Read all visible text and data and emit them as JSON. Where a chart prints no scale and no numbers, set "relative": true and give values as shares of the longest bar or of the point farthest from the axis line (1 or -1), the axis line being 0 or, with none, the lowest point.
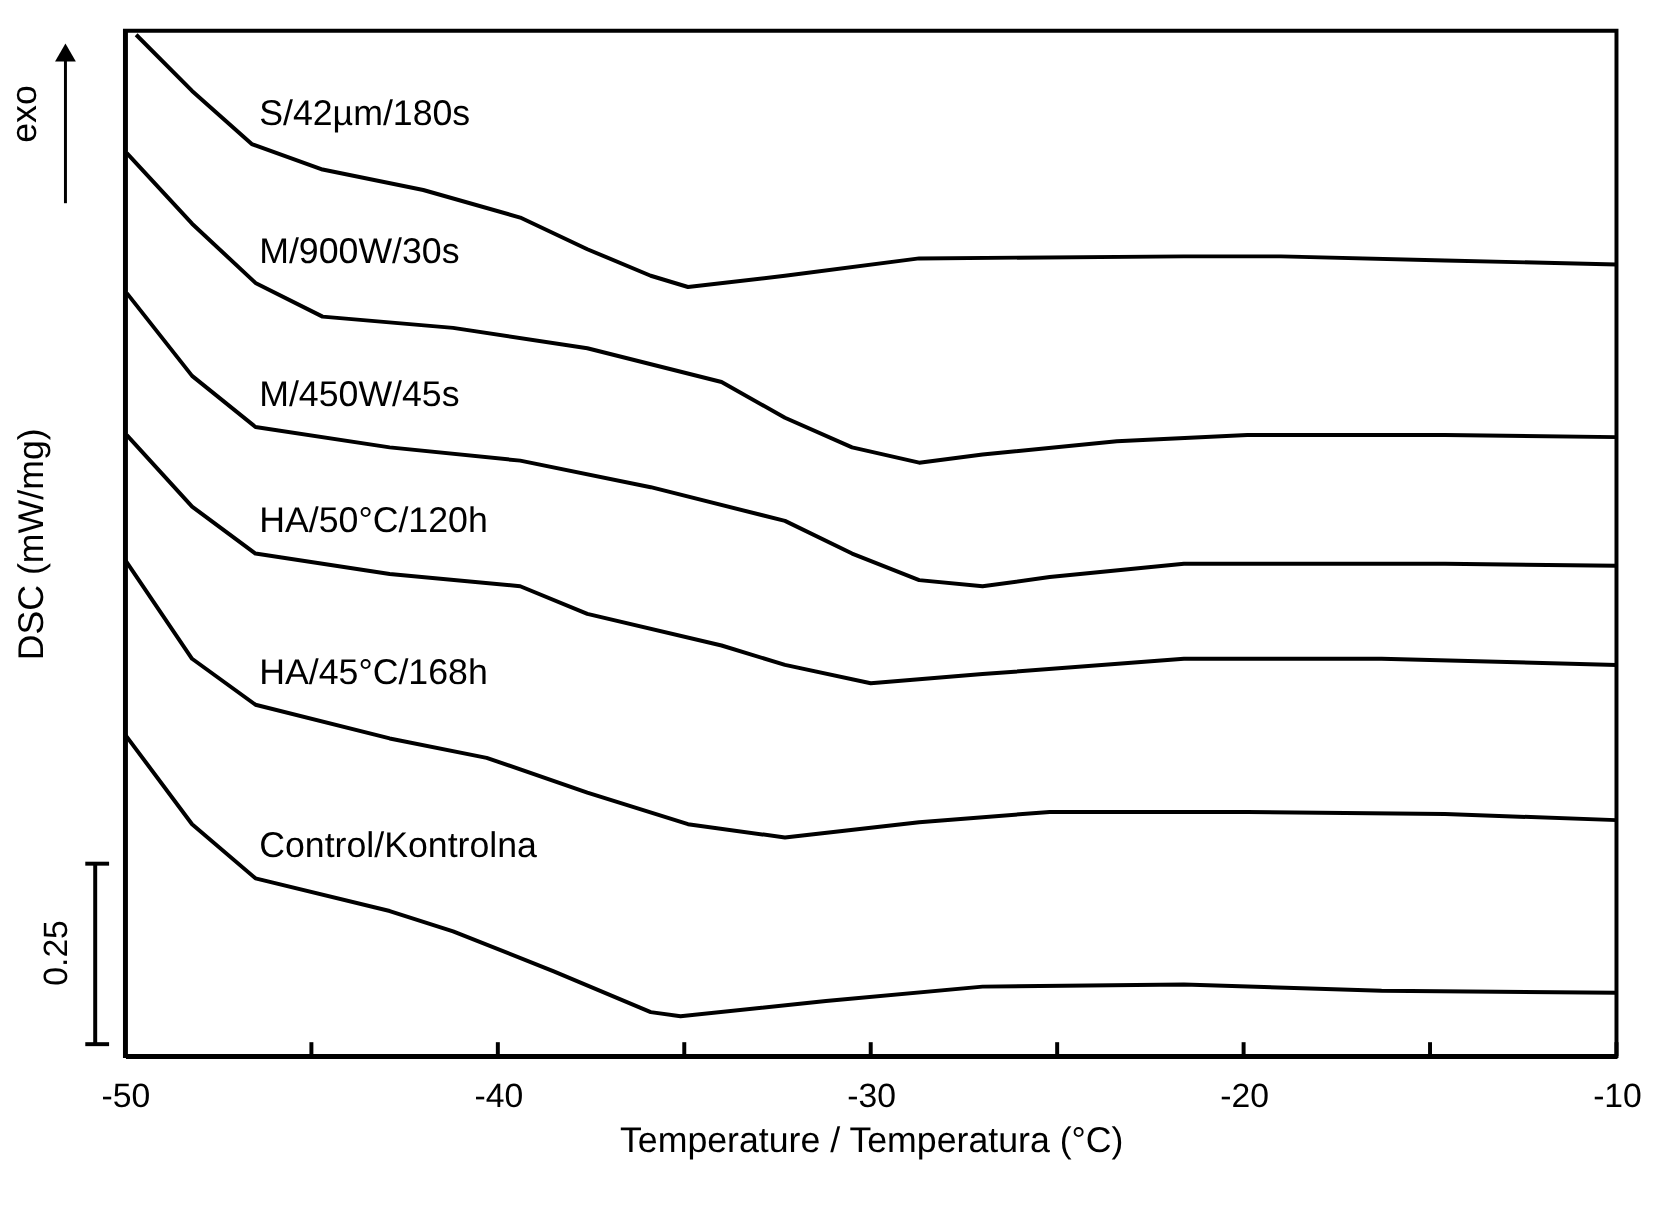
{
  "chart_data": {
    "type": "line",
    "relative": true,
    "xlabel": "Temperature / Temperatura (°C)",
    "ylabel": "DSC (mW/mg)",
    "annotations": [
      "exo",
      "0.25"
    ],
    "xlim": [
      -50,
      -10
    ],
    "xticks": [
      -50,
      {
        "value": -45,
        "label": null
      },
      -40,
      {
        "value": -35,
        "label": null
      },
      -30,
      {
        "value": -25,
        "label": null
      },
      -20,
      {
        "value": -15,
        "label": null
      },
      -10
    ],
    "grid": false,
    "legend": false,
    "marker": "none",
    "line_style": "solid",
    "series": [
      {
        "name": "S/42µm/180s",
        "color": "#000000",
        "x": [
          -49.7,
          -48.2,
          -46.6,
          -44.7,
          -42.0,
          -39.4,
          -37.6,
          -35.9,
          -34.9,
          -32.3,
          -28.7,
          -21.6,
          -19.0,
          -14.6,
          -10
        ],
        "values": [
          1.0,
          0.945,
          0.893,
          0.868,
          0.848,
          0.821,
          0.79,
          0.764,
          0.753,
          0.764,
          0.781,
          0.783,
          0.783,
          0.779,
          0.775
        ]
      },
      {
        "name": "M/900W/30s",
        "color": "#000000",
        "x": [
          -49.95,
          -48.2,
          -46.5,
          -44.7,
          -41.2,
          -37.6,
          -34.0,
          -32.3,
          -30.5,
          -28.7,
          -27.0,
          -23.4,
          -19.9,
          -14.6,
          -10
        ],
        "values": [
          0.884,
          0.815,
          0.757,
          0.724,
          0.713,
          0.693,
          0.66,
          0.625,
          0.596,
          0.581,
          0.589,
          0.602,
          0.608,
          0.608,
          0.606
        ]
      },
      {
        "name": "M/450W/45s",
        "color": "#000000",
        "x": [
          -49.95,
          -48.2,
          -46.5,
          -42.9,
          -39.4,
          -35.9,
          -32.3,
          -30.5,
          -28.7,
          -27.0,
          -25.2,
          -21.6,
          -18.1,
          -14.6,
          -10
        ],
        "values": [
          0.747,
          0.666,
          0.616,
          0.596,
          0.583,
          0.557,
          0.524,
          0.492,
          0.466,
          0.46,
          0.469,
          0.482,
          0.482,
          0.482,
          0.48
        ]
      },
      {
        "name": "HA/50°C/120h",
        "color": "#000000",
        "x": [
          -49.95,
          -48.2,
          -46.5,
          -42.9,
          -39.4,
          -37.6,
          -34.0,
          -32.3,
          -30.0,
          -27.0,
          -21.6,
          -16.3,
          -10
        ],
        "values": [
          0.608,
          0.538,
          0.492,
          0.472,
          0.46,
          0.433,
          0.402,
          0.383,
          0.365,
          0.374,
          0.389,
          0.389,
          0.383
        ]
      },
      {
        "name": "HA/45°C/168h",
        "color": "#000000",
        "x": [
          -50,
          -48.2,
          -46.5,
          -42.9,
          -40.3,
          -37.6,
          -34.9,
          -32.3,
          -28.7,
          -25.2,
          -19.9,
          -14.6,
          -10
        ],
        "values": [
          0.486,
          0.389,
          0.344,
          0.311,
          0.292,
          0.258,
          0.227,
          0.214,
          0.229,
          0.239,
          0.239,
          0.237,
          0.231
        ]
      },
      {
        "name": "Control/Kontrolna",
        "color": "#000000",
        "x": [
          -50,
          -48.2,
          -46.5,
          -42.9,
          -41.2,
          -38.5,
          -35.9,
          -35.1,
          -31.2,
          -27.0,
          -21.6,
          -16.3,
          -10
        ],
        "values": [
          0.315,
          0.227,
          0.174,
          0.142,
          0.122,
          0.083,
          0.043,
          0.039,
          0.054,
          0.068,
          0.07,
          0.064,
          0.062
        ]
      }
    ]
  }
}
